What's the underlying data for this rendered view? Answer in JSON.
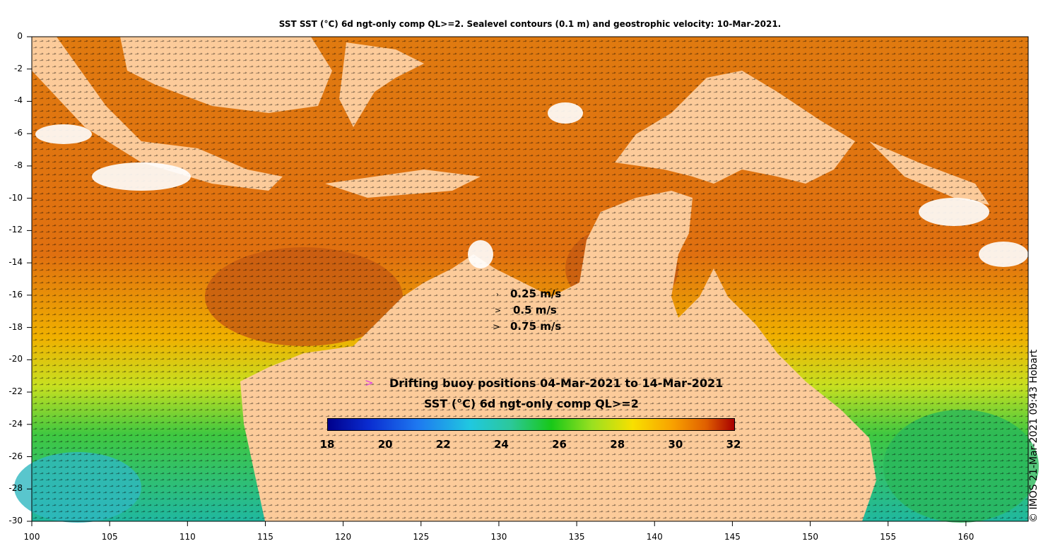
{
  "title": "SST SST (°C) 6d ngt-only comp QL>=2. Sealevel contours (0.1 m) and geostrophic velocity: 10-Mar-2021.",
  "axes": {
    "x_ticks": [
      "100",
      "105",
      "110",
      "115",
      "120",
      "125",
      "130",
      "135",
      "140",
      "145",
      "150",
      "155",
      "160"
    ],
    "x_values": [
      100,
      105,
      110,
      115,
      120,
      125,
      130,
      135,
      140,
      145,
      150,
      155,
      160
    ],
    "x_range": [
      100,
      164
    ],
    "y_ticks": [
      "0",
      "-2",
      "-4",
      "-6",
      "-8",
      "-10",
      "-12",
      "-14",
      "-16",
      "-18",
      "-20",
      "-22",
      "-24",
      "-26",
      "-28",
      "-30"
    ],
    "y_values": [
      0,
      -2,
      -4,
      -6,
      -8,
      -10,
      -12,
      -14,
      -16,
      -18,
      -20,
      -22,
      -24,
      -26,
      -28,
      -30
    ],
    "y_range": [
      -30,
      0
    ]
  },
  "velocity_legend": [
    {
      "label": "0.25 m/s",
      "speed": 0.25
    },
    {
      "label": "0.5 m/s",
      "speed": 0.5
    },
    {
      "label": "0.75 m/s",
      "speed": 0.75
    }
  ],
  "buoy_legend": {
    "symbol": ">",
    "label": "Drifting buoy positions 04-Mar-2021 to 14-Mar-2021",
    "color": "#e040e0"
  },
  "colorbar": {
    "title": "SST (°C) 6d ngt-only comp QL>=2",
    "ticks": [
      "18",
      "20",
      "22",
      "24",
      "26",
      "28",
      "30",
      "32"
    ],
    "values": [
      18,
      20,
      22,
      24,
      26,
      28,
      30,
      32
    ],
    "range": [
      18,
      32
    ]
  },
  "credit": "© IMOS 21-Mar-2021 09:43 Hobart",
  "colors": {
    "land": "#fccb9a",
    "sea_warm": "#e8820c",
    "sea_hot": "#c85a10",
    "sea_mid": "#f5b000",
    "sea_cool": "#2cc86e",
    "cloud": "#ffffff"
  }
}
